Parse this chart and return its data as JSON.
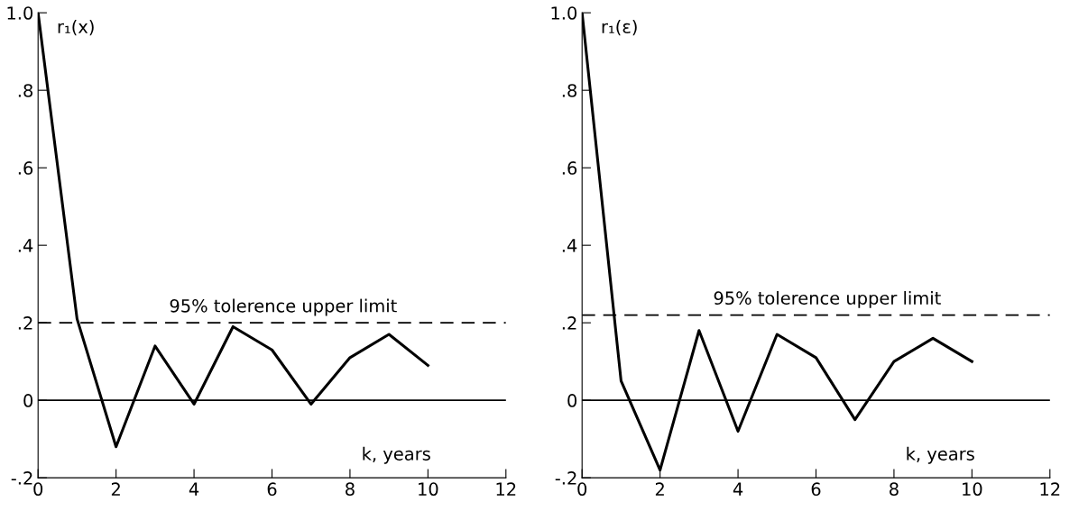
{
  "chart_data": [
    {
      "type": "line",
      "ylabel": "r₁(x)",
      "xlabel": "k, years",
      "x": [
        0,
        1,
        2,
        3,
        4,
        5,
        6,
        7,
        8,
        9,
        10
      ],
      "series": [
        {
          "color": "#000000",
          "values": [
            1.0,
            0.21,
            -0.12,
            0.14,
            -0.01,
            0.19,
            0.13,
            -0.01,
            0.11,
            0.17,
            0.09
          ]
        }
      ],
      "xlim": [
        0,
        12
      ],
      "xticks": [
        0,
        2,
        4,
        6,
        8,
        10,
        12
      ],
      "ylim": [
        -0.2,
        1.0
      ],
      "yticks": [
        {
          "value": -0.2,
          "label": "-.2"
        },
        {
          "value": 0,
          "label": "0"
        },
        {
          "value": 0.2,
          "label": ".2"
        },
        {
          "value": 0.4,
          "label": ".4"
        },
        {
          "value": 0.6,
          "label": ".6"
        },
        {
          "value": 0.8,
          "label": ".8"
        },
        {
          "value": 1.0,
          "label": "1.0"
        }
      ],
      "ref_lines": [
        {
          "axis": "y",
          "value": 0.2,
          "label": "95% tolerence upper limit",
          "line_style": "dashed",
          "color": "#000000"
        },
        {
          "axis": "y",
          "value": 0,
          "line_style": "solid",
          "color": "#000000"
        }
      ],
      "grid": false,
      "marker": "none",
      "line_style": "solid"
    },
    {
      "type": "line",
      "ylabel": "r₁(ε)",
      "xlabel": "k, years",
      "x": [
        0,
        1,
        2,
        3,
        4,
        5,
        6,
        7,
        8,
        9,
        10
      ],
      "series": [
        {
          "color": "#000000",
          "values": [
            1.0,
            0.05,
            -0.18,
            0.18,
            -0.08,
            0.17,
            0.11,
            -0.05,
            0.1,
            0.16,
            0.1
          ]
        }
      ],
      "xlim": [
        0,
        12
      ],
      "xticks": [
        0,
        2,
        4,
        6,
        8,
        10,
        12
      ],
      "ylim": [
        -0.2,
        1.0
      ],
      "yticks": [
        {
          "value": -0.2,
          "label": "-.2"
        },
        {
          "value": 0,
          "label": "0"
        },
        {
          "value": 0.2,
          "label": ".2"
        },
        {
          "value": 0.4,
          "label": ".4"
        },
        {
          "value": 0.6,
          "label": ".6"
        },
        {
          "value": 0.8,
          "label": ".8"
        },
        {
          "value": 1.0,
          "label": "1.0"
        }
      ],
      "ref_lines": [
        {
          "axis": "y",
          "value": 0.22,
          "label": "95% tolerence upper limit",
          "line_style": "dashed",
          "color": "#000000"
        },
        {
          "axis": "y",
          "value": 0,
          "line_style": "solid",
          "color": "#000000"
        }
      ],
      "grid": false,
      "marker": "none",
      "line_style": "solid"
    }
  ]
}
